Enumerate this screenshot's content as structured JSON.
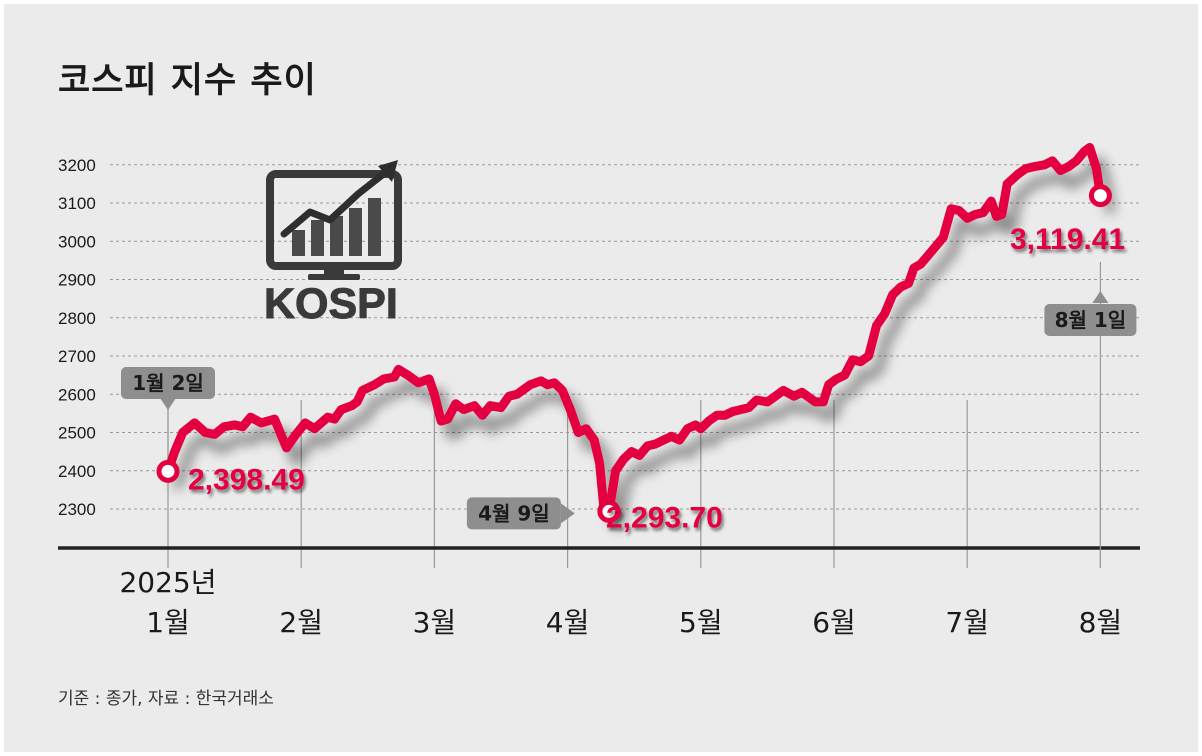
{
  "title": "코스피 지수 추이",
  "source": "기준 : 종가, 자료 : 한국거래소",
  "logo_text": "KOSPI",
  "colors": {
    "line": "#e4003f",
    "grid": "#9a9a9a",
    "axis": "#222222",
    "text": "#1a1a1a",
    "callout": "#8e8e8e",
    "logo": "#3a3a3a"
  },
  "chart_data": {
    "type": "line",
    "title": "코스피 지수 추이",
    "y_ticks": [
      2300,
      2400,
      2500,
      2600,
      2700,
      2800,
      2900,
      3000,
      3100,
      3200
    ],
    "ylim": [
      2200,
      3300
    ],
    "x_year_label": "2025년",
    "x_ticks": [
      {
        "label": "1월",
        "t": 0.0
      },
      {
        "label": "2월",
        "t": 1.0
      },
      {
        "label": "3월",
        "t": 2.0
      },
      {
        "label": "4월",
        "t": 3.0
      },
      {
        "label": "5월",
        "t": 4.0
      },
      {
        "label": "6월",
        "t": 5.0
      },
      {
        "label": "7월",
        "t": 6.0
      },
      {
        "label": "8월",
        "t": 7.0
      }
    ],
    "series": [
      {
        "points": [
          [
            0.0,
            2398.49
          ],
          [
            0.05,
            2450
          ],
          [
            0.11,
            2500
          ],
          [
            0.2,
            2525
          ],
          [
            0.28,
            2500
          ],
          [
            0.35,
            2495
          ],
          [
            0.42,
            2515
          ],
          [
            0.5,
            2520
          ],
          [
            0.56,
            2515
          ],
          [
            0.62,
            2540
          ],
          [
            0.7,
            2525
          ],
          [
            0.8,
            2535
          ],
          [
            0.89,
            2460
          ],
          [
            0.95,
            2490
          ],
          [
            1.03,
            2525
          ],
          [
            1.1,
            2510
          ],
          [
            1.2,
            2540
          ],
          [
            1.25,
            2535
          ],
          [
            1.3,
            2560
          ],
          [
            1.38,
            2570
          ],
          [
            1.42,
            2580
          ],
          [
            1.46,
            2610
          ],
          [
            1.55,
            2625
          ],
          [
            1.62,
            2640
          ],
          [
            1.7,
            2645
          ],
          [
            1.73,
            2665
          ],
          [
            1.8,
            2650
          ],
          [
            1.88,
            2630
          ],
          [
            1.96,
            2640
          ],
          [
            2.0,
            2600
          ],
          [
            2.05,
            2530
          ],
          [
            2.1,
            2535
          ],
          [
            2.16,
            2575
          ],
          [
            2.22,
            2560
          ],
          [
            2.3,
            2570
          ],
          [
            2.36,
            2545
          ],
          [
            2.42,
            2570
          ],
          [
            2.5,
            2565
          ],
          [
            2.56,
            2595
          ],
          [
            2.62,
            2600
          ],
          [
            2.72,
            2625
          ],
          [
            2.8,
            2635
          ],
          [
            2.85,
            2625
          ],
          [
            2.9,
            2630
          ],
          [
            2.96,
            2610
          ],
          [
            3.02,
            2560
          ],
          [
            3.08,
            2500
          ],
          [
            3.14,
            2510
          ],
          [
            3.2,
            2480
          ],
          [
            3.24,
            2420
          ],
          [
            3.27,
            2310
          ],
          [
            3.31,
            2293.7
          ],
          [
            3.36,
            2400
          ],
          [
            3.42,
            2430
          ],
          [
            3.48,
            2450
          ],
          [
            3.54,
            2440
          ],
          [
            3.6,
            2465
          ],
          [
            3.66,
            2470
          ],
          [
            3.72,
            2480
          ],
          [
            3.78,
            2490
          ],
          [
            3.84,
            2480
          ],
          [
            3.9,
            2510
          ],
          [
            3.96,
            2520
          ],
          [
            4.0,
            2510
          ],
          [
            4.06,
            2530
          ],
          [
            4.12,
            2545
          ],
          [
            4.18,
            2545
          ],
          [
            4.24,
            2555
          ],
          [
            4.3,
            2560
          ],
          [
            4.36,
            2565
          ],
          [
            4.42,
            2585
          ],
          [
            4.5,
            2580
          ],
          [
            4.56,
            2595
          ],
          [
            4.62,
            2610
          ],
          [
            4.7,
            2595
          ],
          [
            4.76,
            2605
          ],
          [
            4.82,
            2590
          ],
          [
            4.86,
            2580
          ],
          [
            4.92,
            2580
          ],
          [
            4.96,
            2625
          ],
          [
            5.02,
            2640
          ],
          [
            5.08,
            2650
          ],
          [
            5.14,
            2690
          ],
          [
            5.2,
            2685
          ],
          [
            5.26,
            2700
          ],
          [
            5.32,
            2780
          ],
          [
            5.38,
            2810
          ],
          [
            5.44,
            2860
          ],
          [
            5.5,
            2880
          ],
          [
            5.56,
            2890
          ],
          [
            5.6,
            2930
          ],
          [
            5.65,
            2940
          ],
          [
            5.7,
            2960
          ],
          [
            5.76,
            2985
          ],
          [
            5.82,
            3010
          ],
          [
            5.88,
            3085
          ],
          [
            5.94,
            3080
          ],
          [
            6.0,
            3060
          ],
          [
            6.06,
            3070
          ],
          [
            6.12,
            3075
          ],
          [
            6.18,
            3105
          ],
          [
            6.22,
            3065
          ],
          [
            6.26,
            3070
          ],
          [
            6.3,
            3150
          ],
          [
            6.38,
            3175
          ],
          [
            6.44,
            3190
          ],
          [
            6.5,
            3195
          ],
          [
            6.58,
            3200
          ],
          [
            6.64,
            3210
          ],
          [
            6.7,
            3185
          ],
          [
            6.76,
            3195
          ],
          [
            6.82,
            3210
          ],
          [
            6.88,
            3235
          ],
          [
            6.92,
            3245
          ],
          [
            6.97,
            3190
          ],
          [
            7.0,
            3119.41
          ]
        ]
      }
    ],
    "annotations": [
      {
        "value_label": "2,398.49",
        "date_label": "1월 2일",
        "t": 0.0,
        "y": 2398.49
      },
      {
        "value_label": "2,293.70",
        "date_label": "4월 9일",
        "t": 3.31,
        "y": 2293.7
      },
      {
        "value_label": "3,119.41",
        "date_label": "8월 1일",
        "t": 7.0,
        "y": 3119.41
      }
    ]
  }
}
